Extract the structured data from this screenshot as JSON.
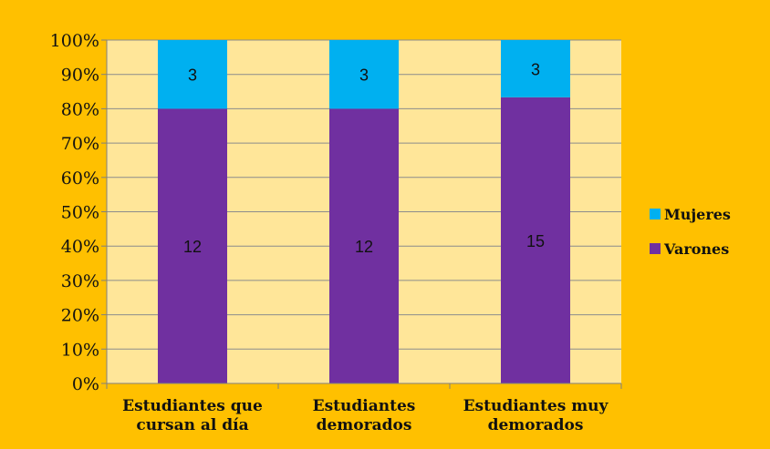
{
  "chart_data": {
    "type": "bar",
    "stacked": true,
    "percent_stacked": true,
    "categories": [
      [
        "Estudiantes que",
        "cursan al día"
      ],
      [
        "Estudiantes",
        "demorados"
      ],
      [
        "Estudiantes muy",
        "demorados"
      ]
    ],
    "series": [
      {
        "name": "Varones",
        "values": [
          12,
          12,
          15
        ],
        "color": "#7030A0"
      },
      {
        "name": "Mujeres",
        "values": [
          3,
          3,
          3
        ],
        "color": "#00B0F0"
      }
    ],
    "ylim": [
      0,
      100
    ],
    "yticks": [
      "0%",
      "10%",
      "20%",
      "30%",
      "40%",
      "50%",
      "60%",
      "70%",
      "80%",
      "90%",
      "100%"
    ],
    "grid": true,
    "legend_position": "right",
    "colors": {
      "background": "#FFC000",
      "plot_area": "#FFE699",
      "gridline": "#8C8C8C",
      "border": "#999999"
    }
  }
}
